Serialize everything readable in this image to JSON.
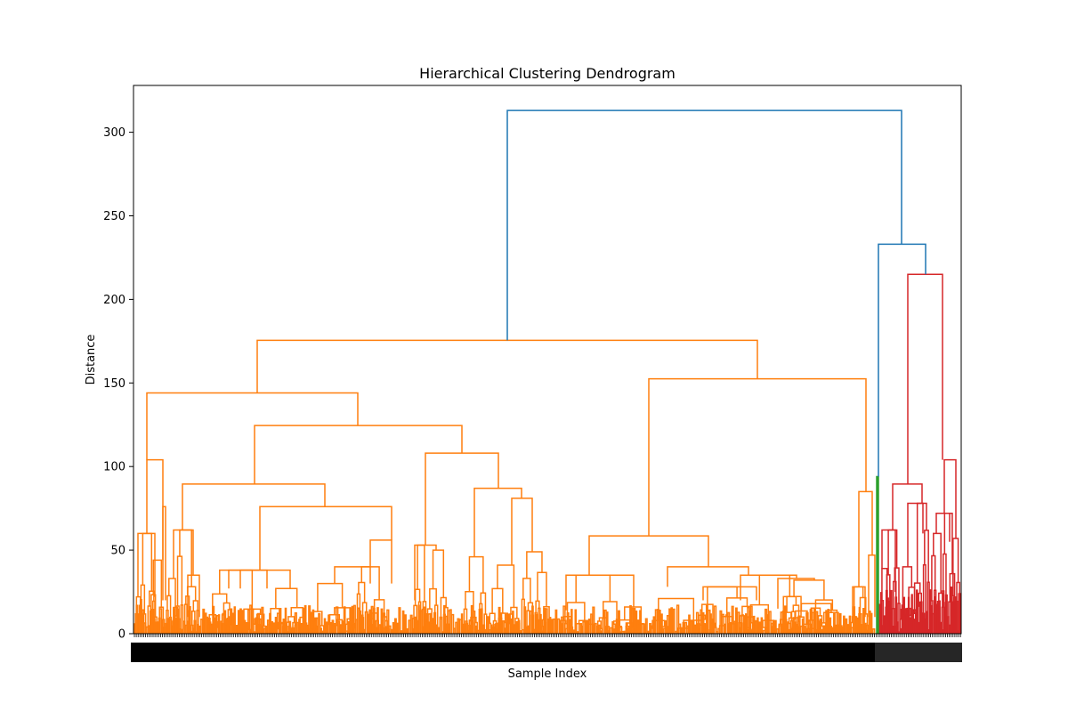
{
  "chart_data": {
    "type": "dendrogram",
    "title": "Hierarchical Clustering Dendrogram",
    "xlabel": "Sample Index",
    "ylabel": "Distance",
    "ylim": [
      0,
      328
    ],
    "y_ticks": [
      0,
      50,
      100,
      150,
      200,
      250,
      300
    ],
    "grid": false,
    "legend": "none",
    "colors": {
      "C1": "#ff7f0e",
      "C2": "#2ca02c",
      "C3": "#d62728",
      "above_threshold": "#1f77b4"
    },
    "clusters": [
      {
        "color_key": "C1",
        "leaf_fraction": [
          0.0,
          0.897
        ]
      },
      {
        "color_key": "C2",
        "leaf_fraction": [
          0.897,
          0.901
        ]
      },
      {
        "color_key": "C3",
        "leaf_fraction": [
          0.901,
          1.0
        ]
      }
    ],
    "merges": [
      {
        "name": "root",
        "height": 313,
        "children": [
          "orange-cluster",
          "green-red-group"
        ],
        "color_key": "above_threshold"
      },
      {
        "name": "green-red-group",
        "height": 233,
        "children": [
          "green-cluster",
          "red-cluster"
        ],
        "color_key": "above_threshold"
      },
      {
        "name": "orange-cluster",
        "height": 175.5,
        "color_key": "C1"
      },
      {
        "name": "red-cluster",
        "height": 215,
        "color_key": "C3"
      },
      {
        "name": "green-cluster",
        "height": 94,
        "color_key": "C2"
      },
      {
        "name": "orange-left",
        "height": 144,
        "color_key": "C1"
      },
      {
        "name": "orange-right",
        "height": 152.5,
        "color_key": "C1"
      },
      {
        "name": "orange-mid",
        "height": 124.5,
        "color_key": "C1"
      },
      {
        "name": "orange-far-left",
        "height": 104,
        "color_key": "C1"
      },
      {
        "name": "orange-mid-right",
        "height": 108,
        "color_key": "C1"
      },
      {
        "name": "orange-mid-left",
        "height": 89.5,
        "color_key": "C1"
      },
      {
        "name": "orange-right-a",
        "height": 58.5,
        "color_key": "C1"
      },
      {
        "name": "orange-right-b",
        "height": 85,
        "color_key": "C1"
      },
      {
        "name": "red-left",
        "height": 89.5,
        "color_key": "C3"
      },
      {
        "name": "red-right",
        "height": 104,
        "color_key": "C3"
      }
    ]
  }
}
